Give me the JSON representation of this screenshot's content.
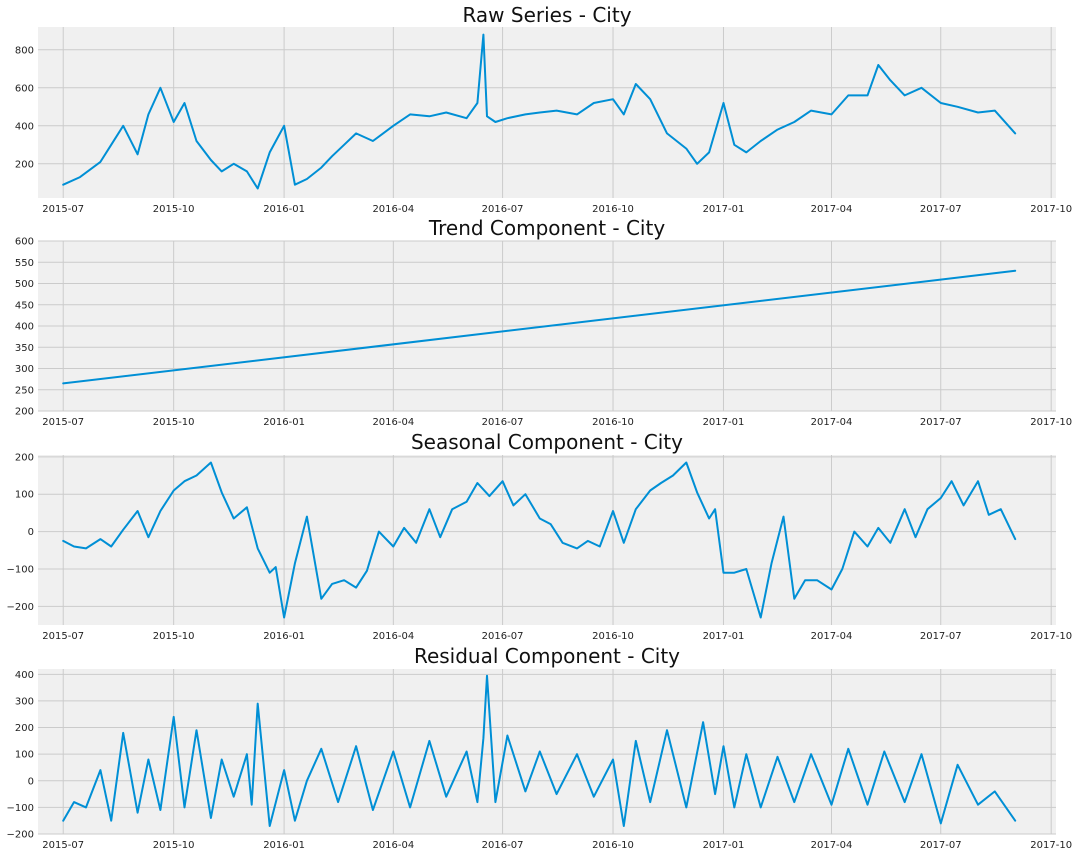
{
  "figure": {
    "colors": {
      "line": "#008fd5",
      "panel_background": "#f0f0f0",
      "grid": "#cbcbcb"
    }
  },
  "chart_data": [
    {
      "type": "line",
      "title": "Raw Series - City",
      "xlabel": "",
      "ylabel": "",
      "xlim": [
        "2015-06-10",
        "2017-10-05"
      ],
      "ylim": [
        20,
        920
      ],
      "yticks": [
        200,
        400,
        600,
        800
      ],
      "xticks": [
        "2015-07",
        "2015-10",
        "2016-01",
        "2016-04",
        "2016-07",
        "2016-10",
        "2017-01",
        "2017-04",
        "2017-07",
        "2017-10"
      ],
      "grid": true,
      "series": [
        {
          "x": [
            "2015-07-01",
            "2015-07-15",
            "2015-08-01",
            "2015-08-10",
            "2015-08-20",
            "2015-09-01",
            "2015-09-10",
            "2015-09-20",
            "2015-10-01",
            "2015-10-10",
            "2015-10-20",
            "2015-11-01",
            "2015-11-10",
            "2015-11-20",
            "2015-12-01",
            "2015-12-10",
            "2015-12-20",
            "2016-01-01",
            "2016-01-10",
            "2016-01-20",
            "2016-02-01",
            "2016-02-10",
            "2016-02-20",
            "2016-03-01",
            "2016-03-15",
            "2016-04-01",
            "2016-04-15",
            "2016-05-01",
            "2016-05-15",
            "2016-06-01",
            "2016-06-10",
            "2016-06-15",
            "2016-06-18",
            "2016-06-25",
            "2016-07-05",
            "2016-07-20",
            "2016-08-01",
            "2016-08-15",
            "2016-09-01",
            "2016-09-15",
            "2016-10-01",
            "2016-10-10",
            "2016-10-20",
            "2016-11-01",
            "2016-11-15",
            "2016-12-01",
            "2016-12-10",
            "2016-12-20",
            "2017-01-01",
            "2017-01-10",
            "2017-01-20",
            "2017-02-01",
            "2017-02-15",
            "2017-03-01",
            "2017-03-15",
            "2017-04-01",
            "2017-04-15",
            "2017-05-01",
            "2017-05-10",
            "2017-05-20",
            "2017-06-01",
            "2017-06-15",
            "2017-07-01",
            "2017-07-15",
            "2017-08-01",
            "2017-08-15",
            "2017-09-01"
          ],
          "values": [
            90,
            130,
            210,
            300,
            400,
            250,
            460,
            600,
            420,
            520,
            320,
            220,
            160,
            200,
            160,
            70,
            260,
            400,
            90,
            120,
            180,
            240,
            300,
            360,
            320,
            400,
            460,
            450,
            470,
            440,
            520,
            880,
            450,
            420,
            440,
            460,
            470,
            480,
            460,
            520,
            540,
            460,
            620,
            540,
            360,
            280,
            200,
            260,
            520,
            300,
            260,
            320,
            380,
            420,
            480,
            460,
            560,
            560,
            720,
            640,
            560,
            600,
            520,
            500,
            470,
            480,
            360
          ]
        }
      ]
    },
    {
      "type": "line",
      "title": "Trend Component - City",
      "xlabel": "",
      "ylabel": "",
      "xlim": [
        "2015-06-10",
        "2017-10-05"
      ],
      "ylim": [
        200,
        600
      ],
      "yticks": [
        200,
        250,
        300,
        350,
        400,
        450,
        500,
        550,
        600
      ],
      "xticks": [
        "2015-07",
        "2015-10",
        "2016-01",
        "2016-04",
        "2016-07",
        "2016-10",
        "2017-01",
        "2017-04",
        "2017-07",
        "2017-10"
      ],
      "grid": true,
      "series": [
        {
          "x": [
            "2015-07-01",
            "2017-09-01"
          ],
          "values": [
            265,
            530
          ]
        }
      ]
    },
    {
      "type": "line",
      "title": "Seasonal Component - City",
      "xlabel": "",
      "ylabel": "",
      "xlim": [
        "2015-06-10",
        "2017-10-05"
      ],
      "ylim": [
        -250,
        205
      ],
      "yticks": [
        -200,
        -100,
        0,
        100,
        200
      ],
      "xticks": [
        "2015-07",
        "2015-10",
        "2016-01",
        "2016-04",
        "2016-07",
        "2016-10",
        "2017-01",
        "2017-04",
        "2017-07",
        "2017-10"
      ],
      "grid": true,
      "series": [
        {
          "x": [
            "2015-07-01",
            "2015-07-10",
            "2015-07-20",
            "2015-08-01",
            "2015-08-10",
            "2015-08-20",
            "2015-09-01",
            "2015-09-10",
            "2015-09-20",
            "2015-10-01",
            "2015-10-10",
            "2015-10-20",
            "2015-11-01",
            "2015-11-10",
            "2015-11-20",
            "2015-12-01",
            "2015-12-10",
            "2015-12-20",
            "2015-12-25",
            "2016-01-01",
            "2016-01-10",
            "2016-01-20",
            "2016-02-01",
            "2016-02-10",
            "2016-02-20",
            "2016-03-01",
            "2016-03-10",
            "2016-03-20",
            "2016-04-01",
            "2016-04-10",
            "2016-04-20",
            "2016-05-01",
            "2016-05-10",
            "2016-05-20",
            "2016-06-01",
            "2016-06-10",
            "2016-06-20",
            "2016-07-01",
            "2016-07-10",
            "2016-07-20",
            "2016-08-01",
            "2016-08-10",
            "2016-08-20",
            "2016-09-01",
            "2016-09-10",
            "2016-09-20",
            "2016-10-01",
            "2016-10-10",
            "2016-10-20",
            "2016-11-01",
            "2016-11-10",
            "2016-11-20",
            "2016-12-01",
            "2016-12-10",
            "2016-12-20",
            "2016-12-25",
            "2017-01-01",
            "2017-01-10",
            "2017-01-20",
            "2017-02-01",
            "2017-02-10",
            "2017-02-20",
            "2017-03-01",
            "2017-03-10",
            "2017-03-20",
            "2017-04-01",
            "2017-04-10",
            "2017-04-20",
            "2017-05-01",
            "2017-05-10",
            "2017-05-20",
            "2017-06-01",
            "2017-06-10",
            "2017-06-20",
            "2017-07-01",
            "2017-07-10",
            "2017-07-20",
            "2017-08-01",
            "2017-08-10",
            "2017-08-20",
            "2017-09-01"
          ],
          "values": [
            -25,
            -40,
            -45,
            -20,
            -40,
            5,
            55,
            -15,
            55,
            110,
            135,
            150,
            185,
            105,
            35,
            65,
            -45,
            -110,
            -95,
            -230,
            -85,
            40,
            -180,
            -140,
            -130,
            -150,
            -105,
            0,
            -40,
            10,
            -30,
            60,
            -15,
            60,
            80,
            130,
            95,
            135,
            70,
            100,
            35,
            20,
            -30,
            -45,
            -25,
            -40,
            55,
            -30,
            60,
            110,
            130,
            150,
            185,
            105,
            35,
            60,
            -110,
            -110,
            -100,
            -230,
            -85,
            40,
            -180,
            -130,
            -130,
            -155,
            -100,
            0,
            -40,
            10,
            -30,
            60,
            -15,
            60,
            90,
            135,
            70,
            135,
            45,
            60,
            -20
          ]
        }
      ]
    },
    {
      "type": "line",
      "title": "Residual Component - City",
      "xlabel": "",
      "ylabel": "",
      "xlim": [
        "2015-06-10",
        "2017-10-05"
      ],
      "ylim": [
        -200,
        420
      ],
      "yticks": [
        -200,
        -100,
        0,
        100,
        200,
        300,
        400
      ],
      "xticks": [
        "2015-07",
        "2015-10",
        "2016-01",
        "2016-04",
        "2016-07",
        "2016-10",
        "2017-01",
        "2017-04",
        "2017-07",
        "2017-10"
      ],
      "grid": true,
      "series": [
        {
          "x": [
            "2015-07-01",
            "2015-07-10",
            "2015-07-20",
            "2015-08-01",
            "2015-08-10",
            "2015-08-20",
            "2015-09-01",
            "2015-09-10",
            "2015-09-20",
            "2015-10-01",
            "2015-10-10",
            "2015-10-20",
            "2015-11-01",
            "2015-11-10",
            "2015-11-20",
            "2015-12-01",
            "2015-12-05",
            "2015-12-10",
            "2015-12-20",
            "2016-01-01",
            "2016-01-10",
            "2016-01-20",
            "2016-02-01",
            "2016-02-15",
            "2016-03-01",
            "2016-03-15",
            "2016-04-01",
            "2016-04-15",
            "2016-05-01",
            "2016-05-15",
            "2016-06-01",
            "2016-06-10",
            "2016-06-15",
            "2016-06-18",
            "2016-06-25",
            "2016-07-05",
            "2016-07-20",
            "2016-08-01",
            "2016-08-15",
            "2016-09-01",
            "2016-09-15",
            "2016-10-01",
            "2016-10-10",
            "2016-10-20",
            "2016-11-01",
            "2016-11-15",
            "2016-12-01",
            "2016-12-15",
            "2016-12-25",
            "2017-01-01",
            "2017-01-10",
            "2017-01-20",
            "2017-02-01",
            "2017-02-15",
            "2017-03-01",
            "2017-03-15",
            "2017-04-01",
            "2017-04-15",
            "2017-05-01",
            "2017-05-15",
            "2017-06-01",
            "2017-06-15",
            "2017-07-01",
            "2017-07-15",
            "2017-08-01",
            "2017-08-15",
            "2017-09-01"
          ],
          "values": [
            -150,
            -80,
            -100,
            40,
            -150,
            180,
            -120,
            80,
            -110,
            240,
            -100,
            190,
            -140,
            80,
            -60,
            100,
            -90,
            290,
            -170,
            40,
            -150,
            0,
            120,
            -80,
            130,
            -110,
            110,
            -100,
            150,
            -60,
            110,
            -80,
            160,
            395,
            -80,
            170,
            -40,
            110,
            -50,
            100,
            -60,
            80,
            -170,
            150,
            -80,
            190,
            -100,
            220,
            -50,
            130,
            -100,
            100,
            -100,
            90,
            -80,
            100,
            -90,
            120,
            -90,
            110,
            -80,
            100,
            -160,
            60,
            -90,
            -40,
            -150
          ]
        }
      ]
    }
  ]
}
